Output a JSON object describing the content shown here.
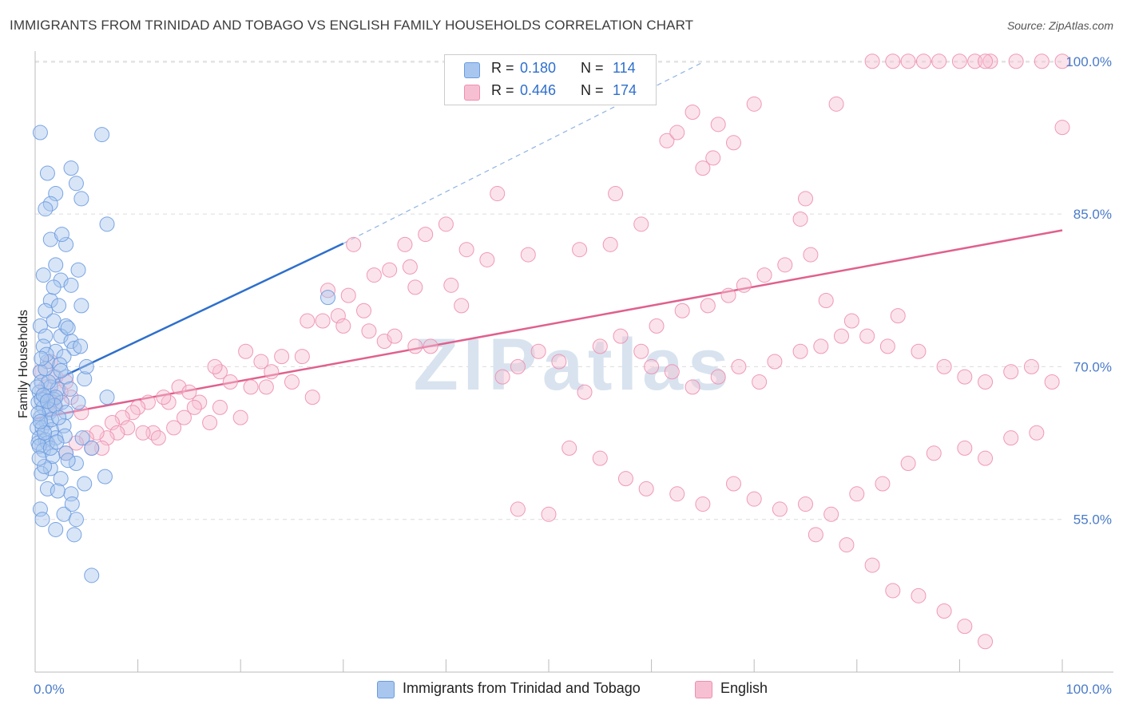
{
  "title": "IMMIGRANTS FROM TRINIDAD AND TOBAGO VS ENGLISH FAMILY HOUSEHOLDS CORRELATION CHART",
  "source": "Source: ZipAtlas.com",
  "watermark": "ZIPatlas",
  "legend": {
    "r_label": "R =",
    "n_label": "N =",
    "series": [
      {
        "r": "0.180",
        "n": "114",
        "color": "#a8c6ee",
        "border": "#6b9be0"
      },
      {
        "r": "0.446",
        "n": "174",
        "color": "#f7c0d2",
        "border": "#ee8fb0"
      }
    ]
  },
  "bottom_legend": [
    "Immigrants from Trinidad and Tobago",
    "English"
  ],
  "chart_data": {
    "type": "scatter",
    "title": "IMMIGRANTS FROM TRINIDAD AND TOBAGO VS ENGLISH FAMILY HOUSEHOLDS CORRELATION CHART",
    "xlabel": "",
    "ylabel": "Family Households",
    "xlim": [
      0,
      100
    ],
    "ylim": [
      40,
      101
    ],
    "x_tick_labels": [
      "0.0%",
      "100.0%"
    ],
    "y_tick_values": [
      55,
      70,
      85,
      100
    ],
    "y_tick_labels": [
      "55.0%",
      "70.0%",
      "85.0%",
      "100.0%"
    ],
    "series": [
      {
        "name": "Immigrants from Trinidad and Tobago",
        "color": "#6b9be0",
        "fill": "#a8c6ee",
        "trend": {
          "x0": 2.0,
          "y0": 68.7,
          "x1": 30.0,
          "y1": 82.1,
          "x_dash_end": 65.0,
          "y_dash_end": 99.9,
          "color": "#2e6fcc"
        },
        "points": [
          [
            0.5,
            93.0
          ],
          [
            1.2,
            89.0
          ],
          [
            2.0,
            87.0
          ],
          [
            1.5,
            86.0
          ],
          [
            1.0,
            85.5
          ],
          [
            6.5,
            92.8
          ],
          [
            3.5,
            89.5
          ],
          [
            4.0,
            88.0
          ],
          [
            4.5,
            86.5
          ],
          [
            7.0,
            84.0
          ],
          [
            1.5,
            82.5
          ],
          [
            3.0,
            82.0
          ],
          [
            2.0,
            80.0
          ],
          [
            0.8,
            79.0
          ],
          [
            4.2,
            79.5
          ],
          [
            2.5,
            78.5
          ],
          [
            3.5,
            78.0
          ],
          [
            4.5,
            76.0
          ],
          [
            1.5,
            76.5
          ],
          [
            1.0,
            75.5
          ],
          [
            2.3,
            76.0
          ],
          [
            0.5,
            74.0
          ],
          [
            1.8,
            74.5
          ],
          [
            3.0,
            74.0
          ],
          [
            1.0,
            73.0
          ],
          [
            2.5,
            73.0
          ],
          [
            0.8,
            72.0
          ],
          [
            2.0,
            71.5
          ],
          [
            3.5,
            72.5
          ],
          [
            3.8,
            71.8
          ],
          [
            2.8,
            71.0
          ],
          [
            1.2,
            70.5
          ],
          [
            0.5,
            69.5
          ],
          [
            1.8,
            69.0
          ],
          [
            3.0,
            69.0
          ],
          [
            0.6,
            68.5
          ],
          [
            1.5,
            68.0
          ],
          [
            2.2,
            67.8
          ],
          [
            4.8,
            68.8
          ],
          [
            0.4,
            67.5
          ],
          [
            1.0,
            67.0
          ],
          [
            1.8,
            66.8
          ],
          [
            2.6,
            66.5
          ],
          [
            7.0,
            67.0
          ],
          [
            0.3,
            66.5
          ],
          [
            0.8,
            66.0
          ],
          [
            1.4,
            65.5
          ],
          [
            0.5,
            65.0
          ],
          [
            1.1,
            64.5
          ],
          [
            3.0,
            65.5
          ],
          [
            4.2,
            66.5
          ],
          [
            0.2,
            64.0
          ],
          [
            0.7,
            64.0
          ],
          [
            1.6,
            63.8
          ],
          [
            0.4,
            63.0
          ],
          [
            1.0,
            62.8
          ],
          [
            2.0,
            63.0
          ],
          [
            4.6,
            63.0
          ],
          [
            0.3,
            62.5
          ],
          [
            1.2,
            62.5
          ],
          [
            0.8,
            61.8
          ],
          [
            3.0,
            61.5
          ],
          [
            5.5,
            62.0
          ],
          [
            1.5,
            60.0
          ],
          [
            4.0,
            60.5
          ],
          [
            0.6,
            59.5
          ],
          [
            2.5,
            59.0
          ],
          [
            4.8,
            58.5
          ],
          [
            6.8,
            59.2
          ],
          [
            1.2,
            58.0
          ],
          [
            3.5,
            57.5
          ],
          [
            0.5,
            56.0
          ],
          [
            2.8,
            55.5
          ],
          [
            4.0,
            55.0
          ],
          [
            0.7,
            55.0
          ],
          [
            2.0,
            54.0
          ],
          [
            3.8,
            53.5
          ],
          [
            5.5,
            49.5
          ],
          [
            28.5,
            76.8
          ],
          [
            0.9,
            63.5
          ],
          [
            1.3,
            68.5
          ],
          [
            2.0,
            67.0
          ],
          [
            0.6,
            66.8
          ],
          [
            1.4,
            65.8
          ],
          [
            2.8,
            64.2
          ],
          [
            0.4,
            62.2
          ],
          [
            1.7,
            61.2
          ],
          [
            3.2,
            60.8
          ],
          [
            1.0,
            69.8
          ],
          [
            2.4,
            70.2
          ],
          [
            0.2,
            68.0
          ],
          [
            1.6,
            64.8
          ],
          [
            2.9,
            63.2
          ],
          [
            0.9,
            60.2
          ],
          [
            2.2,
            57.8
          ],
          [
            3.6,
            56.5
          ],
          [
            1.1,
            71.2
          ],
          [
            2.5,
            69.6
          ],
          [
            0.3,
            65.4
          ],
          [
            1.9,
            66.2
          ],
          [
            0.6,
            70.8
          ],
          [
            4.4,
            72.0
          ],
          [
            3.2,
            73.8
          ],
          [
            1.8,
            77.8
          ],
          [
            2.6,
            83.0
          ],
          [
            5.0,
            70.0
          ],
          [
            0.4,
            61.0
          ],
          [
            1.5,
            62.0
          ],
          [
            2.3,
            65.0
          ],
          [
            3.4,
            67.8
          ],
          [
            0.8,
            67.2
          ],
          [
            1.2,
            66.6
          ],
          [
            0.5,
            64.6
          ],
          [
            2.1,
            62.6
          ]
        ]
      },
      {
        "name": "English",
        "color": "#ee8fb0",
        "fill": "#f7c0d2",
        "trend": {
          "x0": 0.0,
          "y0": 64.9,
          "x1": 100.0,
          "y1": 83.4,
          "color": "#e0608e"
        },
        "points": [
          [
            81.5,
            100.0
          ],
          [
            83.5,
            100.0
          ],
          [
            85.0,
            100.0
          ],
          [
            86.5,
            100.0
          ],
          [
            88.0,
            100.0
          ],
          [
            90.0,
            100.0
          ],
          [
            91.5,
            100.0
          ],
          [
            93.0,
            100.0
          ],
          [
            95.5,
            100.0
          ],
          [
            98.0,
            100.0
          ],
          [
            100.0,
            100.0
          ],
          [
            92.5,
            100.0
          ],
          [
            70.0,
            95.8
          ],
          [
            78.0,
            95.8
          ],
          [
            64.0,
            95.0
          ],
          [
            66.5,
            93.8
          ],
          [
            68.0,
            92.0
          ],
          [
            61.5,
            92.2
          ],
          [
            62.5,
            93.0
          ],
          [
            66.0,
            90.5
          ],
          [
            65.0,
            89.5
          ],
          [
            100.0,
            93.5
          ],
          [
            56.5,
            87.0
          ],
          [
            45.0,
            87.0
          ],
          [
            59.0,
            84.0
          ],
          [
            75.0,
            86.5
          ],
          [
            74.5,
            84.5
          ],
          [
            56.0,
            82.0
          ],
          [
            53.0,
            81.5
          ],
          [
            48.0,
            81.0
          ],
          [
            44.0,
            80.5
          ],
          [
            36.0,
            82.0
          ],
          [
            38.0,
            83.0
          ],
          [
            40.0,
            84.0
          ],
          [
            42.0,
            81.5
          ],
          [
            31.0,
            82.0
          ],
          [
            34.5,
            79.5
          ],
          [
            33.0,
            79.0
          ],
          [
            36.5,
            79.8
          ],
          [
            37.0,
            77.8
          ],
          [
            40.5,
            78.0
          ],
          [
            41.5,
            76.0
          ],
          [
            28.5,
            77.5
          ],
          [
            30.5,
            77.0
          ],
          [
            32.0,
            75.5
          ],
          [
            28.0,
            74.5
          ],
          [
            29.5,
            75.0
          ],
          [
            30.0,
            74.0
          ],
          [
            26.5,
            74.5
          ],
          [
            32.5,
            73.5
          ],
          [
            34.0,
            72.5
          ],
          [
            35.0,
            73.0
          ],
          [
            37.0,
            72.0
          ],
          [
            38.5,
            72.0
          ],
          [
            24.0,
            71.0
          ],
          [
            26.0,
            71.0
          ],
          [
            20.5,
            71.5
          ],
          [
            22.0,
            70.5
          ],
          [
            23.0,
            69.5
          ],
          [
            18.0,
            69.5
          ],
          [
            17.5,
            70.0
          ],
          [
            19.0,
            68.5
          ],
          [
            21.0,
            68.0
          ],
          [
            25.0,
            68.5
          ],
          [
            14.0,
            68.0
          ],
          [
            15.0,
            67.5
          ],
          [
            16.0,
            66.5
          ],
          [
            13.0,
            66.5
          ],
          [
            12.5,
            67.0
          ],
          [
            11.0,
            66.5
          ],
          [
            10.0,
            66.0
          ],
          [
            9.5,
            65.5
          ],
          [
            8.5,
            65.0
          ],
          [
            7.5,
            64.5
          ],
          [
            11.5,
            63.5
          ],
          [
            12.0,
            63.0
          ],
          [
            13.5,
            64.0
          ],
          [
            10.5,
            63.5
          ],
          [
            9.0,
            64.0
          ],
          [
            8.0,
            63.5
          ],
          [
            7.0,
            63.0
          ],
          [
            6.0,
            63.5
          ],
          [
            5.0,
            63.0
          ],
          [
            4.0,
            62.5
          ],
          [
            6.5,
            62.0
          ],
          [
            5.5,
            62.0
          ],
          [
            3.0,
            61.5
          ],
          [
            4.5,
            65.5
          ],
          [
            2.0,
            66.0
          ],
          [
            3.5,
            67.0
          ],
          [
            1.5,
            66.5
          ],
          [
            2.5,
            67.5
          ],
          [
            1.0,
            68.0
          ],
          [
            3.0,
            68.5
          ],
          [
            0.5,
            69.5
          ],
          [
            1.5,
            70.5
          ],
          [
            2.0,
            69.0
          ],
          [
            20.0,
            65.0
          ],
          [
            18.0,
            66.0
          ],
          [
            17.0,
            64.5
          ],
          [
            14.5,
            65.0
          ],
          [
            15.5,
            66.0
          ],
          [
            22.5,
            68.0
          ],
          [
            27.0,
            67.0
          ],
          [
            45.5,
            69.0
          ],
          [
            47.0,
            70.0
          ],
          [
            49.0,
            71.5
          ],
          [
            51.0,
            70.5
          ],
          [
            53.5,
            67.5
          ],
          [
            55.0,
            72.0
          ],
          [
            57.0,
            73.0
          ],
          [
            59.0,
            71.5
          ],
          [
            60.0,
            70.0
          ],
          [
            62.0,
            69.5
          ],
          [
            64.0,
            68.0
          ],
          [
            66.5,
            69.0
          ],
          [
            68.5,
            70.0
          ],
          [
            70.5,
            68.5
          ],
          [
            72.0,
            70.5
          ],
          [
            74.5,
            71.5
          ],
          [
            76.5,
            72.0
          ],
          [
            78.5,
            73.0
          ],
          [
            60.5,
            74.0
          ],
          [
            63.0,
            75.5
          ],
          [
            65.5,
            76.0
          ],
          [
            67.5,
            77.0
          ],
          [
            69.0,
            78.0
          ],
          [
            71.0,
            79.0
          ],
          [
            73.0,
            80.0
          ],
          [
            75.5,
            81.0
          ],
          [
            77.0,
            76.5
          ],
          [
            79.5,
            74.5
          ],
          [
            81.0,
            73.0
          ],
          [
            83.0,
            72.0
          ],
          [
            84.0,
            75.0
          ],
          [
            86.0,
            71.5
          ],
          [
            88.5,
            70.0
          ],
          [
            90.5,
            69.0
          ],
          [
            92.5,
            68.5
          ],
          [
            95.0,
            69.5
          ],
          [
            97.0,
            70.0
          ],
          [
            99.0,
            68.5
          ],
          [
            52.0,
            62.0
          ],
          [
            55.0,
            61.0
          ],
          [
            57.5,
            59.0
          ],
          [
            59.5,
            58.0
          ],
          [
            62.5,
            57.5
          ],
          [
            65.0,
            56.5
          ],
          [
            68.0,
            58.5
          ],
          [
            70.0,
            57.0
          ],
          [
            72.5,
            56.0
          ],
          [
            75.0,
            56.5
          ],
          [
            77.5,
            55.5
          ],
          [
            80.0,
            57.5
          ],
          [
            82.5,
            58.5
          ],
          [
            85.0,
            60.5
          ],
          [
            87.5,
            61.5
          ],
          [
            90.5,
            62.0
          ],
          [
            92.5,
            61.0
          ],
          [
            95.0,
            63.0
          ],
          [
            97.5,
            63.5
          ],
          [
            76.0,
            53.5
          ],
          [
            79.0,
            52.5
          ],
          [
            81.5,
            50.5
          ],
          [
            83.5,
            48.0
          ],
          [
            86.0,
            47.5
          ],
          [
            88.5,
            46.0
          ],
          [
            90.5,
            44.5
          ],
          [
            92.5,
            43.0
          ],
          [
            47.0,
            56.0
          ],
          [
            50.0,
            55.5
          ]
        ]
      }
    ]
  }
}
